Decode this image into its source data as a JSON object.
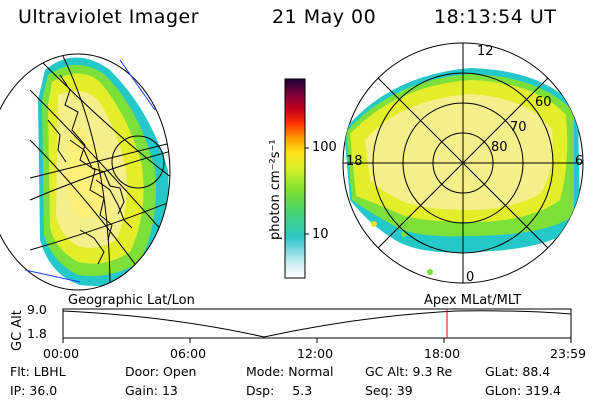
{
  "header": {
    "title": "Ultraviolet Imager",
    "date": "21 May 00",
    "time": "18:13:54 UT"
  },
  "colorbar": {
    "unit_label": "photon cm⁻²s⁻¹",
    "ticks": [
      "100",
      "10"
    ]
  },
  "polar": {
    "mlt_labels": [
      "12",
      "18",
      "6",
      "0"
    ],
    "lat_labels": [
      "60",
      "70",
      "80"
    ]
  },
  "captions": {
    "left": "Geographic Lat/Lon",
    "right": "Apex MLat/MLT"
  },
  "timeline": {
    "axis_label": "GC Alt",
    "ymax": "9.0",
    "ymin": "1.8",
    "ticks": [
      "00:00",
      "06:00",
      "12:00",
      "18:00",
      "23:59"
    ],
    "cursor_time": "18:13:54"
  },
  "info": {
    "row1": {
      "flt_label": "Flt:",
      "flt": "LBHL",
      "door_label": "Door:",
      "door": "Open",
      "mode_label": "Mode:",
      "mode": "Normal",
      "gcalt_label": "GC Alt:",
      "gcalt": "9.3 Re",
      "glat_label": "GLat:",
      "glat": "88.4"
    },
    "row2": {
      "ip_label": "IP:",
      "ip": "36.0",
      "gain_label": "Gain:",
      "gain": "13",
      "dsp_label": "Dsp:",
      "dsp": "5.3",
      "seq_label": "Seq:",
      "seq": "39",
      "glon_label": "GLon:",
      "glon": "319.4"
    }
  }
}
